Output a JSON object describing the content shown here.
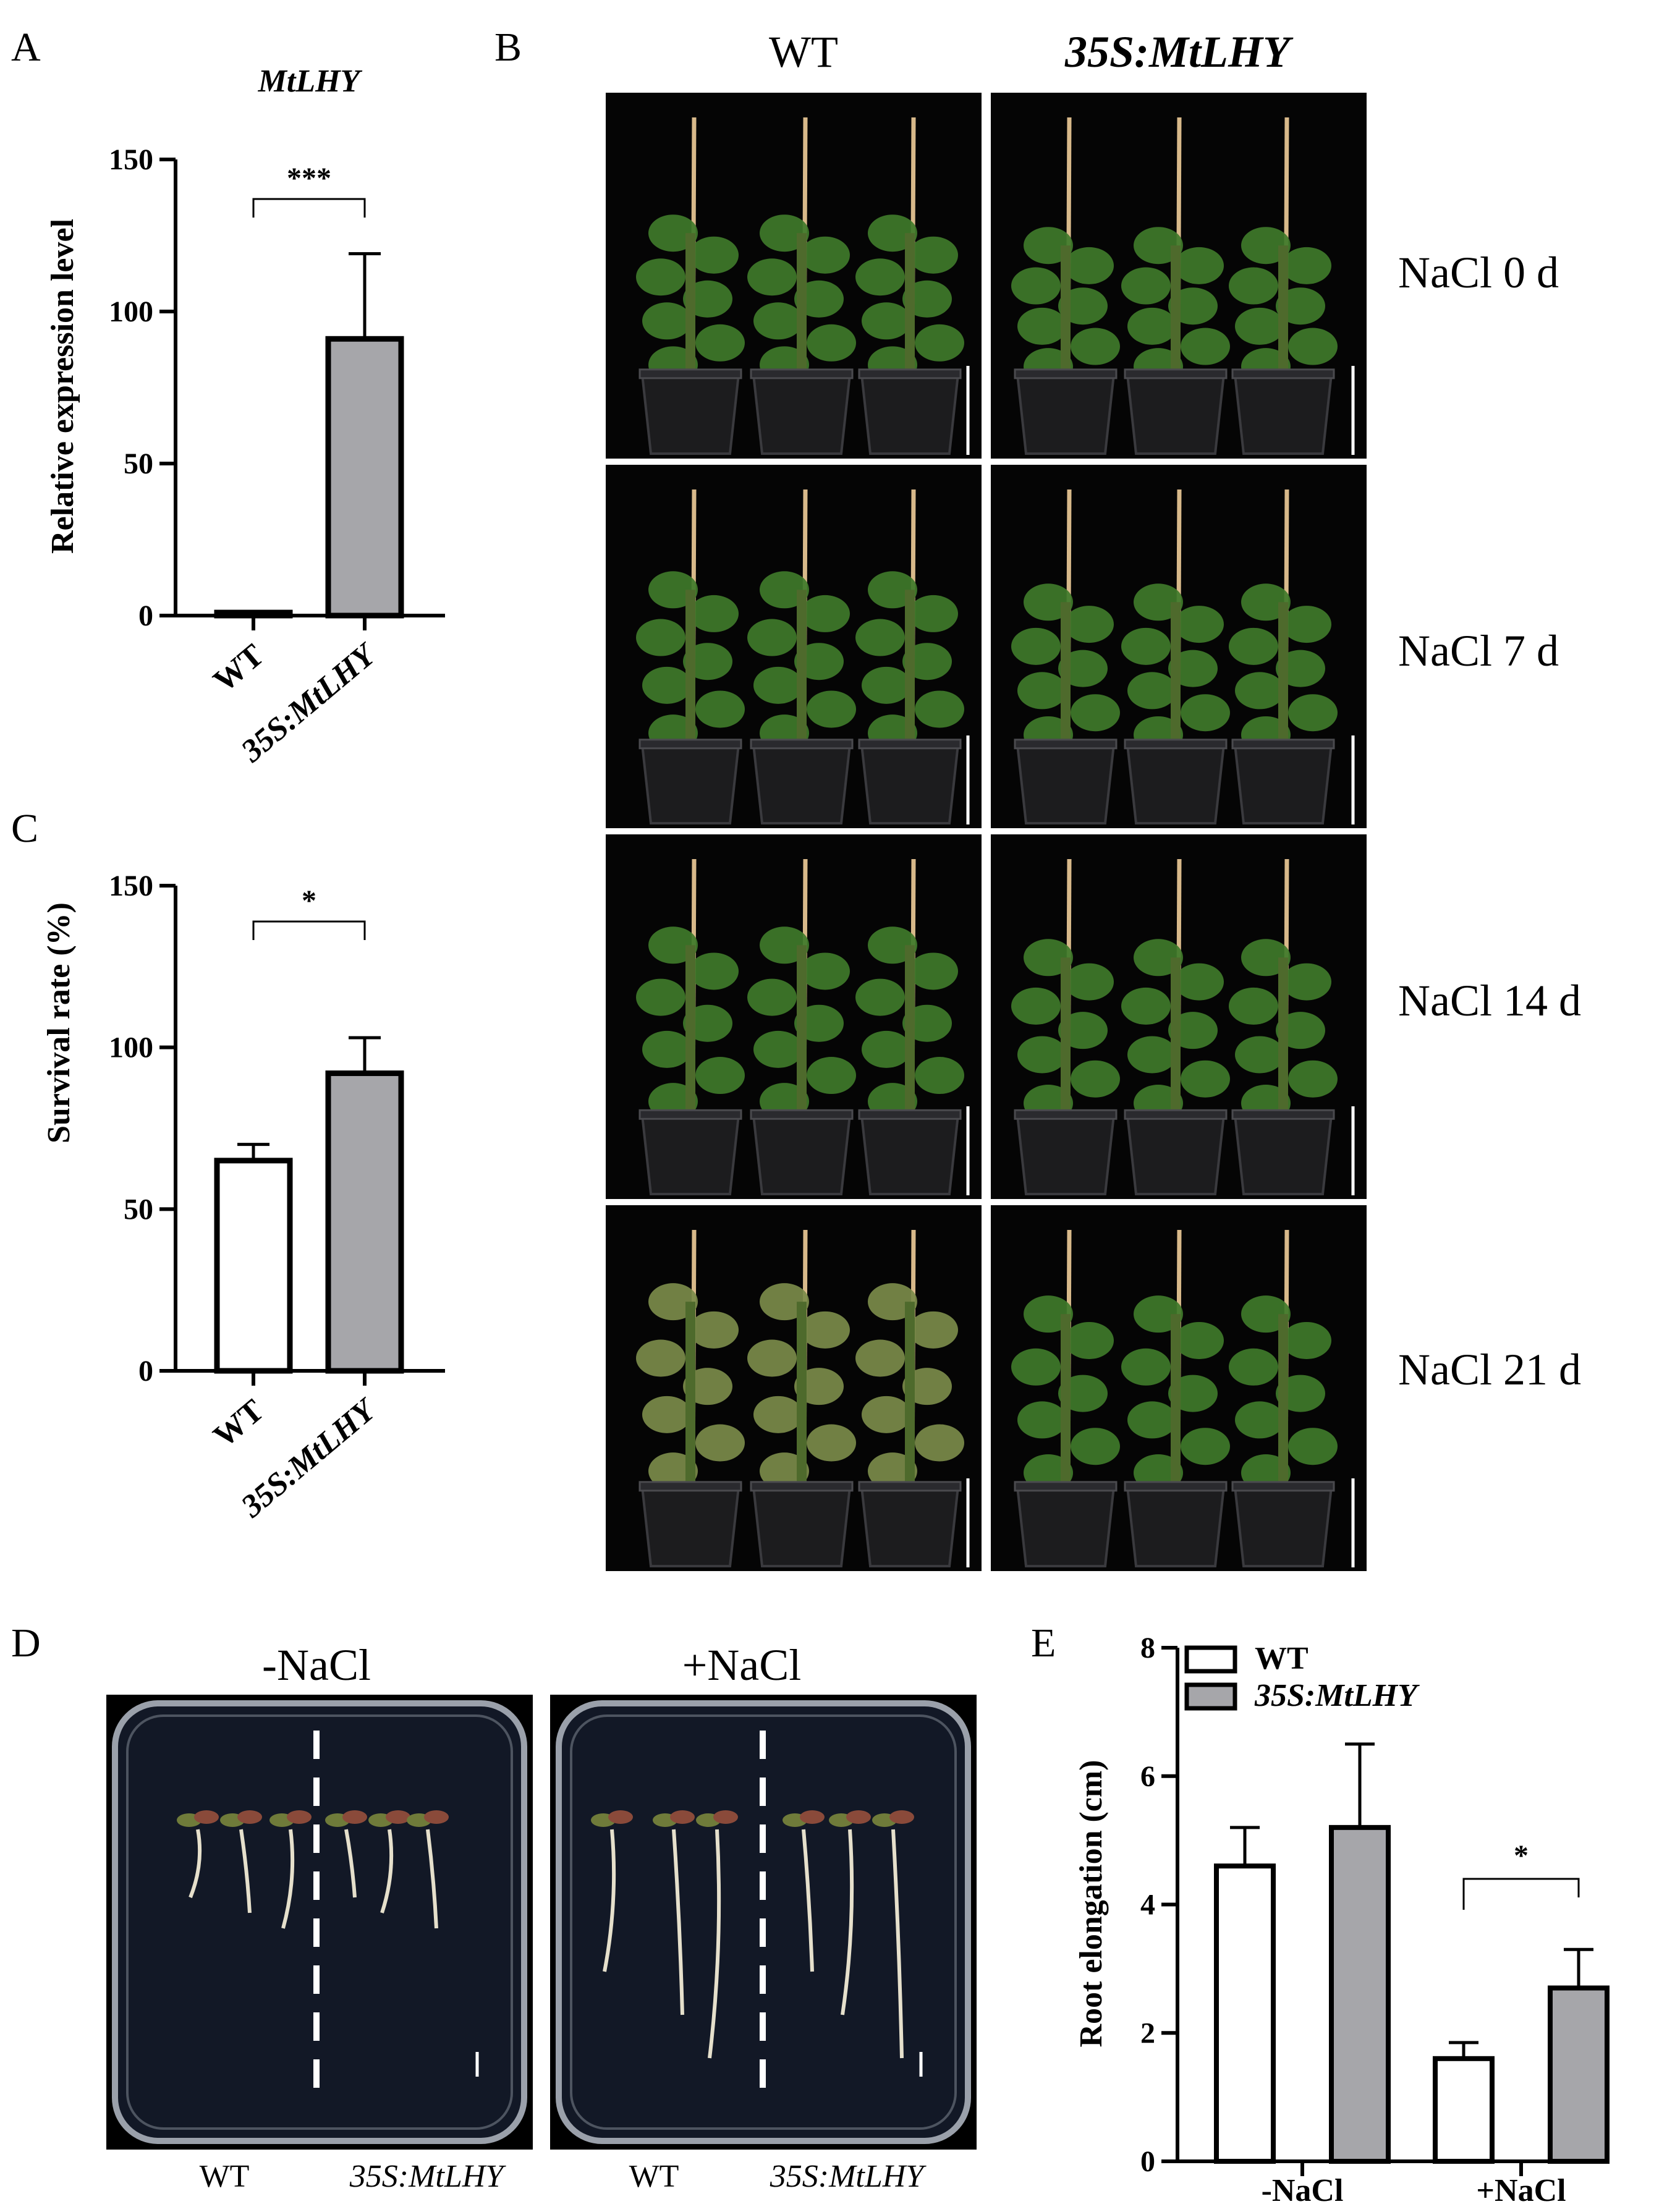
{
  "panels": {
    "A": "A",
    "B": "B",
    "C": "C",
    "D": "D",
    "E": "E"
  },
  "panel_b": {
    "col_labels": [
      "WT",
      "35S:MtLHY"
    ],
    "row_labels": [
      "NaCl 0 d",
      "NaCl 7 d",
      "NaCl 14 d",
      "NaCl 21 d"
    ]
  },
  "panel_d": {
    "condition_labels": [
      "-NaCl",
      "+NaCl"
    ],
    "genotype_labels": [
      "WT",
      "35S:MtLHY",
      "WT",
      "35S:MtLHY"
    ]
  },
  "colors": {
    "wt_fill": "#ffffff",
    "oe_fill": "#a6a6aa",
    "photo_bg": "#050505",
    "leaf": "#3f7a2a",
    "stake": "#d8b98a"
  },
  "chart_data": [
    {
      "id": "A",
      "type": "bar",
      "title": "MtLHY",
      "ylabel": "Relative expression level",
      "categories": [
        "WT",
        "35S:MtLHY"
      ],
      "values": [
        1,
        91
      ],
      "errors": [
        0.3,
        28
      ],
      "ylim": [
        0,
        150
      ],
      "yticks": [
        0,
        50,
        100,
        150
      ],
      "significance": "***"
    },
    {
      "id": "C",
      "type": "bar",
      "ylabel": "Survival rate (%)",
      "categories": [
        "WT",
        "35S:MtLHY"
      ],
      "values": [
        65,
        92
      ],
      "errors": [
        5,
        11
      ],
      "ylim": [
        0,
        150
      ],
      "yticks": [
        0,
        50,
        100,
        150
      ],
      "significance": "*"
    },
    {
      "id": "E",
      "type": "bar",
      "ylabel": "Root elongation (cm)",
      "categories": [
        "-NaCl",
        "+NaCl"
      ],
      "series": [
        {
          "name": "WT",
          "values": [
            4.6,
            1.6
          ],
          "errors": [
            0.6,
            0.25
          ]
        },
        {
          "name": "35S:MtLHY",
          "values": [
            5.2,
            2.7
          ],
          "errors": [
            1.3,
            0.6
          ]
        }
      ],
      "ylim": [
        0,
        8
      ],
      "yticks": [
        0,
        2,
        4,
        6,
        8
      ],
      "significance": "*",
      "legend": "top-left"
    }
  ]
}
